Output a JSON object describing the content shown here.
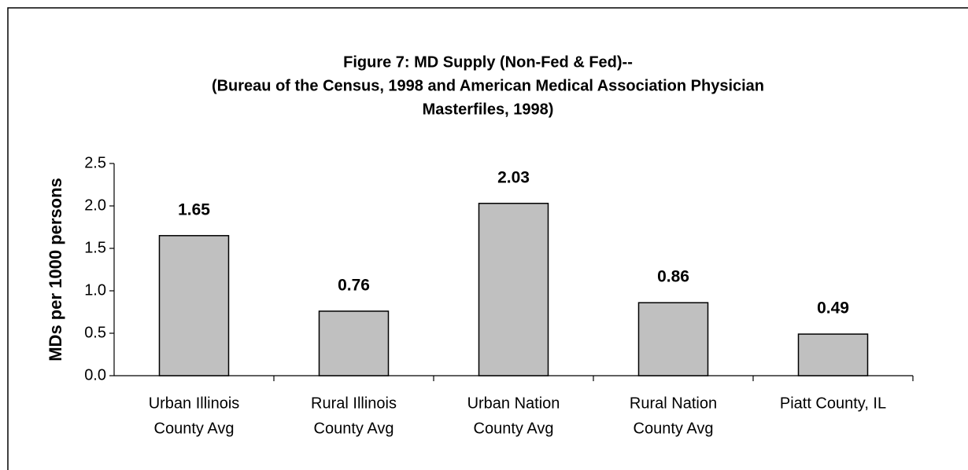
{
  "chart_data": {
    "type": "bar",
    "title": [
      "Figure 7: MD Supply (Non-Fed & Fed)--",
      "(Bureau of the Census, 1998 and American Medical Association Physician",
      "Masterfiles, 1998)"
    ],
    "y_label": "MDs per 1000 persons",
    "categories": [
      [
        "Urban Illinois",
        "County Avg"
      ],
      [
        "Rural Illinois",
        "County Avg"
      ],
      [
        "Urban Nation",
        "County Avg"
      ],
      [
        "Rural Nation",
        "County Avg"
      ],
      [
        "Piatt County, IL"
      ]
    ],
    "values": [
      1.65,
      0.76,
      2.03,
      0.86,
      0.49
    ],
    "color": "#c0c0c0",
    "ylim": [
      0,
      2.5
    ],
    "yticks": [
      {
        "value": 0,
        "label": "0.0"
      },
      0.5,
      {
        "value": 1,
        "label": "1.0"
      },
      1.5,
      {
        "value": 2,
        "label": "2.0"
      },
      2.5
    ],
    "grid": false
  }
}
